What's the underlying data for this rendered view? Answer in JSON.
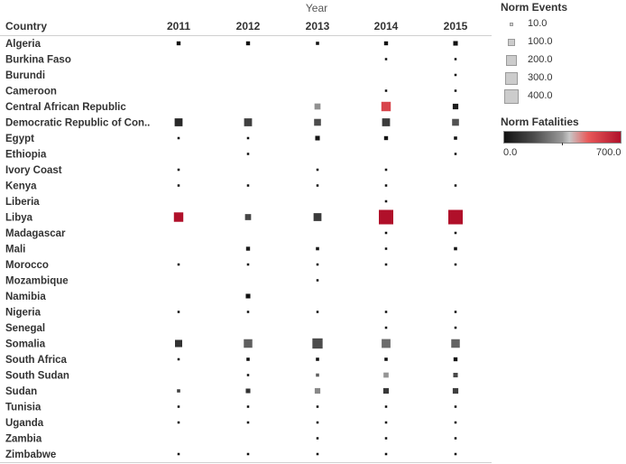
{
  "chart_data": {
    "type": "table",
    "column_title": "Year",
    "row_header": "Country",
    "years": [
      "2011",
      "2012",
      "2013",
      "2014",
      "2015"
    ],
    "countries": [
      "Algeria",
      "Burkina Faso",
      "Burundi",
      "Cameroon",
      "Central African Republic",
      "Democratic Republic of Con..",
      "Egypt",
      "Ethiopia",
      "Ivory Coast",
      "Kenya",
      "Liberia",
      "Libya",
      "Madagascar",
      "Mali",
      "Morocco",
      "Mozambique",
      "Namibia",
      "Nigeria",
      "Senegal",
      "Somalia",
      "South Africa",
      "South Sudan",
      "Sudan",
      "Tunisia",
      "Uganda",
      "Zambia",
      "Zimbabwe"
    ],
    "size_field": "Norm Events",
    "color_field": "Norm Fatalities",
    "color_range": [
      0,
      700
    ],
    "size_legend": [
      10,
      100,
      200,
      300,
      400
    ],
    "color_legend_labels": [
      "0.0",
      "700.0"
    ],
    "marks": [
      {
        "country": "Algeria",
        "year": "2011",
        "events": 30,
        "fatalities": 0
      },
      {
        "country": "Algeria",
        "year": "2012",
        "events": 30,
        "fatalities": 0
      },
      {
        "country": "Algeria",
        "year": "2013",
        "events": 20,
        "fatalities": 0
      },
      {
        "country": "Algeria",
        "year": "2014",
        "events": 30,
        "fatalities": 0
      },
      {
        "country": "Algeria",
        "year": "2015",
        "events": 40,
        "fatalities": 0
      },
      {
        "country": "Burkina Faso",
        "year": "2014",
        "events": 10,
        "fatalities": 0
      },
      {
        "country": "Burkina Faso",
        "year": "2015",
        "events": 10,
        "fatalities": 0
      },
      {
        "country": "Burundi",
        "year": "2015",
        "events": 10,
        "fatalities": 0
      },
      {
        "country": "Cameroon",
        "year": "2014",
        "events": 10,
        "fatalities": 0
      },
      {
        "country": "Cameroon",
        "year": "2015",
        "events": 10,
        "fatalities": 0
      },
      {
        "country": "Central African Republic",
        "year": "2013",
        "events": 70,
        "fatalities": 330
      },
      {
        "country": "Central African Republic",
        "year": "2014",
        "events": 170,
        "fatalities": 560
      },
      {
        "country": "Central African Republic",
        "year": "2015",
        "events": 60,
        "fatalities": 40
      },
      {
        "country": "Democratic Republic of Con..",
        "year": "2011",
        "events": 120,
        "fatalities": 70
      },
      {
        "country": "Democratic Republic of Con..",
        "year": "2012",
        "events": 120,
        "fatalities": 140
      },
      {
        "country": "Democratic Republic of Con..",
        "year": "2013",
        "events": 90,
        "fatalities": 180
      },
      {
        "country": "Democratic Republic of Con..",
        "year": "2014",
        "events": 120,
        "fatalities": 130
      },
      {
        "country": "Democratic Republic of Con..",
        "year": "2015",
        "events": 90,
        "fatalities": 190
      },
      {
        "country": "Egypt",
        "year": "2011",
        "events": 10,
        "fatalities": 0
      },
      {
        "country": "Egypt",
        "year": "2012",
        "events": 10,
        "fatalities": 0
      },
      {
        "country": "Egypt",
        "year": "2013",
        "events": 40,
        "fatalities": 10
      },
      {
        "country": "Egypt",
        "year": "2014",
        "events": 30,
        "fatalities": 10
      },
      {
        "country": "Egypt",
        "year": "2015",
        "events": 20,
        "fatalities": 0
      },
      {
        "country": "Ethiopia",
        "year": "2012",
        "events": 10,
        "fatalities": 0
      },
      {
        "country": "Ethiopia",
        "year": "2015",
        "events": 10,
        "fatalities": 0
      },
      {
        "country": "Ivory Coast",
        "year": "2011",
        "events": 10,
        "fatalities": 0
      },
      {
        "country": "Ivory Coast",
        "year": "2013",
        "events": 10,
        "fatalities": 0
      },
      {
        "country": "Ivory Coast",
        "year": "2014",
        "events": 10,
        "fatalities": 0
      },
      {
        "country": "Kenya",
        "year": "2011",
        "events": 10,
        "fatalities": 0
      },
      {
        "country": "Kenya",
        "year": "2012",
        "events": 10,
        "fatalities": 0
      },
      {
        "country": "Kenya",
        "year": "2013",
        "events": 10,
        "fatalities": 0
      },
      {
        "country": "Kenya",
        "year": "2014",
        "events": 10,
        "fatalities": 0
      },
      {
        "country": "Kenya",
        "year": "2015",
        "events": 10,
        "fatalities": 0
      },
      {
        "country": "Liberia",
        "year": "2014",
        "events": 10,
        "fatalities": 0
      },
      {
        "country": "Libya",
        "year": "2011",
        "events": 170,
        "fatalities": 700
      },
      {
        "country": "Libya",
        "year": "2012",
        "events": 70,
        "fatalities": 160
      },
      {
        "country": "Libya",
        "year": "2013",
        "events": 120,
        "fatalities": 130
      },
      {
        "country": "Libya",
        "year": "2014",
        "events": 400,
        "fatalities": 700
      },
      {
        "country": "Libya",
        "year": "2015",
        "events": 400,
        "fatalities": 700
      },
      {
        "country": "Madagascar",
        "year": "2014",
        "events": 10,
        "fatalities": 0
      },
      {
        "country": "Madagascar",
        "year": "2015",
        "events": 10,
        "fatalities": 0
      },
      {
        "country": "Mali",
        "year": "2012",
        "events": 30,
        "fatalities": 30
      },
      {
        "country": "Mali",
        "year": "2013",
        "events": 20,
        "fatalities": 20
      },
      {
        "country": "Mali",
        "year": "2014",
        "events": 10,
        "fatalities": 0
      },
      {
        "country": "Mali",
        "year": "2015",
        "events": 20,
        "fatalities": 10
      },
      {
        "country": "Morocco",
        "year": "2011",
        "events": 10,
        "fatalities": 0
      },
      {
        "country": "Morocco",
        "year": "2012",
        "events": 10,
        "fatalities": 0
      },
      {
        "country": "Morocco",
        "year": "2013",
        "events": 10,
        "fatalities": 0
      },
      {
        "country": "Morocco",
        "year": "2014",
        "events": 10,
        "fatalities": 0
      },
      {
        "country": "Morocco",
        "year": "2015",
        "events": 10,
        "fatalities": 0
      },
      {
        "country": "Mozambique",
        "year": "2013",
        "events": 10,
        "fatalities": 0
      },
      {
        "country": "Namibia",
        "year": "2012",
        "events": 40,
        "fatalities": 0
      },
      {
        "country": "Nigeria",
        "year": "2011",
        "events": 10,
        "fatalities": 0
      },
      {
        "country": "Nigeria",
        "year": "2012",
        "events": 10,
        "fatalities": 0
      },
      {
        "country": "Nigeria",
        "year": "2013",
        "events": 10,
        "fatalities": 0
      },
      {
        "country": "Nigeria",
        "year": "2014",
        "events": 10,
        "fatalities": 0
      },
      {
        "country": "Nigeria",
        "year": "2015",
        "events": 10,
        "fatalities": 0
      },
      {
        "country": "Senegal",
        "year": "2014",
        "events": 10,
        "fatalities": 0
      },
      {
        "country": "Senegal",
        "year": "2015",
        "events": 10,
        "fatalities": 0
      },
      {
        "country": "Somalia",
        "year": "2011",
        "events": 100,
        "fatalities": 100
      },
      {
        "country": "Somalia",
        "year": "2012",
        "events": 140,
        "fatalities": 220
      },
      {
        "country": "Somalia",
        "year": "2013",
        "events": 200,
        "fatalities": 180
      },
      {
        "country": "Somalia",
        "year": "2014",
        "events": 150,
        "fatalities": 250
      },
      {
        "country": "Somalia",
        "year": "2015",
        "events": 140,
        "fatalities": 230
      },
      {
        "country": "South Africa",
        "year": "2011",
        "events": 10,
        "fatalities": 0
      },
      {
        "country": "South Africa",
        "year": "2012",
        "events": 20,
        "fatalities": 0
      },
      {
        "country": "South Africa",
        "year": "2013",
        "events": 20,
        "fatalities": 0
      },
      {
        "country": "South Africa",
        "year": "2014",
        "events": 20,
        "fatalities": 0
      },
      {
        "country": "South Africa",
        "year": "2015",
        "events": 30,
        "fatalities": 0
      },
      {
        "country": "South Sudan",
        "year": "2012",
        "events": 10,
        "fatalities": 0
      },
      {
        "country": "South Sudan",
        "year": "2013",
        "events": 20,
        "fatalities": 220
      },
      {
        "country": "South Sudan",
        "year": "2014",
        "events": 50,
        "fatalities": 340
      },
      {
        "country": "South Sudan",
        "year": "2015",
        "events": 40,
        "fatalities": 170
      },
      {
        "country": "Sudan",
        "year": "2011",
        "events": 20,
        "fatalities": 140
      },
      {
        "country": "Sudan",
        "year": "2012",
        "events": 40,
        "fatalities": 100
      },
      {
        "country": "Sudan",
        "year": "2013",
        "events": 60,
        "fatalities": 310
      },
      {
        "country": "Sudan",
        "year": "2014",
        "events": 60,
        "fatalities": 120
      },
      {
        "country": "Sudan",
        "year": "2015",
        "events": 60,
        "fatalities": 140
      },
      {
        "country": "Tunisia",
        "year": "2011",
        "events": 10,
        "fatalities": 0
      },
      {
        "country": "Tunisia",
        "year": "2012",
        "events": 10,
        "fatalities": 0
      },
      {
        "country": "Tunisia",
        "year": "2013",
        "events": 10,
        "fatalities": 0
      },
      {
        "country": "Tunisia",
        "year": "2014",
        "events": 10,
        "fatalities": 0
      },
      {
        "country": "Tunisia",
        "year": "2015",
        "events": 10,
        "fatalities": 0
      },
      {
        "country": "Uganda",
        "year": "2011",
        "events": 10,
        "fatalities": 0
      },
      {
        "country": "Uganda",
        "year": "2012",
        "events": 10,
        "fatalities": 0
      },
      {
        "country": "Uganda",
        "year": "2013",
        "events": 10,
        "fatalities": 0
      },
      {
        "country": "Uganda",
        "year": "2014",
        "events": 10,
        "fatalities": 0
      },
      {
        "country": "Uganda",
        "year": "2015",
        "events": 10,
        "fatalities": 0
      },
      {
        "country": "Zambia",
        "year": "2013",
        "events": 10,
        "fatalities": 0
      },
      {
        "country": "Zambia",
        "year": "2014",
        "events": 10,
        "fatalities": 0
      },
      {
        "country": "Zambia",
        "year": "2015",
        "events": 10,
        "fatalities": 0
      },
      {
        "country": "Zimbabwe",
        "year": "2011",
        "events": 10,
        "fatalities": 0
      },
      {
        "country": "Zimbabwe",
        "year": "2012",
        "events": 10,
        "fatalities": 0
      },
      {
        "country": "Zimbabwe",
        "year": "2013",
        "events": 10,
        "fatalities": 0
      },
      {
        "country": "Zimbabwe",
        "year": "2014",
        "events": 10,
        "fatalities": 0
      },
      {
        "country": "Zimbabwe",
        "year": "2015",
        "events": 10,
        "fatalities": 0
      }
    ]
  },
  "colors": {
    "low": "#111111",
    "mid": "#b8b8b8",
    "high": "#b0102a",
    "rule": "#d0d0d0"
  }
}
